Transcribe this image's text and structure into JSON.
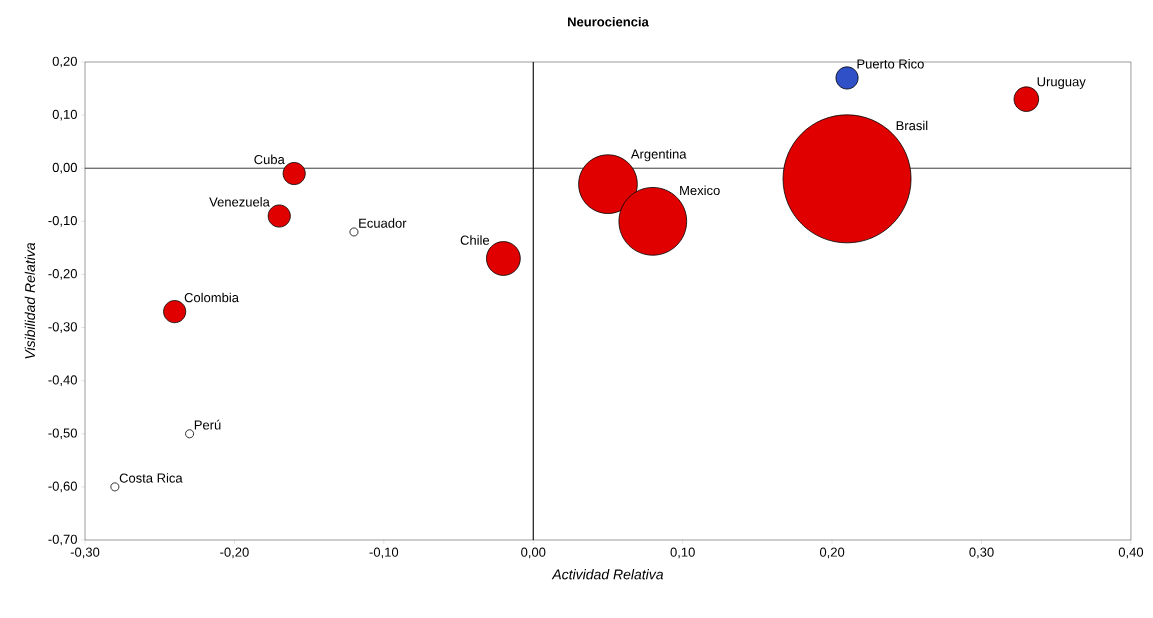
{
  "chart_data": {
    "type": "bubble",
    "title": "Neurociencia",
    "xlabel": "Actividad Relativa",
    "ylabel": "Visibilidad Relativa",
    "x": [
      0.21,
      0.33,
      0.21,
      0.05,
      0.08,
      -0.02,
      -0.12,
      -0.16,
      -0.17,
      -0.24,
      -0.23,
      -0.28
    ],
    "values": [
      0.17,
      0.13,
      -0.02,
      -0.03,
      -0.1,
      -0.17,
      -0.12,
      -0.01,
      -0.09,
      -0.27,
      -0.5,
      -0.6
    ],
    "sizes": [
      0.03,
      0.037,
      1,
      0.21,
      0.28,
      0.07,
      0.004,
      0.03,
      0.03,
      0.03,
      0.004,
      0.004
    ],
    "colors": [
      "#3050c8",
      "#e00000",
      "#e00000",
      "#e00000",
      "#e00000",
      "#e00000",
      "#ffffff",
      "#e00000",
      "#e00000",
      "#e00000",
      "#ffffff",
      "#ffffff"
    ],
    "xlim": [
      -0.3,
      0.4
    ],
    "ylim": [
      -0.7,
      0.2
    ],
    "xticks": [
      {
        "value": -0.3,
        "label": "-0,30"
      },
      {
        "value": -0.2,
        "label": "-0,20"
      },
      {
        "value": -0.1,
        "label": "-0,10"
      },
      {
        "value": 0,
        "label": "0,00"
      },
      {
        "value": 0.1,
        "label": "0,10"
      },
      {
        "value": 0.2,
        "label": "0,20"
      },
      {
        "value": 0.3,
        "label": "0,30"
      },
      {
        "value": 0.4,
        "label": "0,40"
      }
    ],
    "yticks": [
      {
        "value": -0.7,
        "label": "-0,70"
      },
      {
        "value": -0.6,
        "label": "-0,60"
      },
      {
        "value": -0.5,
        "label": "-0,50"
      },
      {
        "value": -0.4,
        "label": "-0,40"
      },
      {
        "value": -0.3,
        "label": "-0,30"
      },
      {
        "value": -0.2,
        "label": "-0,20"
      },
      {
        "value": -0.1,
        "label": "-0,10"
      },
      {
        "value": 0,
        "label": "0,00"
      },
      {
        "value": 0.1,
        "label": "0,10"
      },
      {
        "value": 0.2,
        "label": "0,20"
      }
    ],
    "ref_lines": [
      {
        "axis": "x",
        "value": 0
      },
      {
        "axis": "y",
        "value": 0
      }
    ],
    "annotations": [
      {
        "text": "Puerto Rico",
        "x": 0.21,
        "y": 0.17
      },
      {
        "text": "Uruguay",
        "x": 0.33,
        "y": 0.13
      },
      "Brasil",
      {
        "text": "Argentina",
        "x": 0.05,
        "y": -0.03
      },
      {
        "text": "Mexico",
        "x": 0.08,
        "y": -0.1
      },
      {
        "text": "Chile",
        "x": -0.02,
        "y": -0.17
      },
      {
        "text": "Ecuador",
        "x": -0.12,
        "y": -0.12
      },
      {
        "text": "Cuba",
        "x": -0.16,
        "y": -0.01
      },
      {
        "text": "Venezuela",
        "x": -0.17,
        "y": -0.09
      },
      {
        "text": "Colombia",
        "x": -0.24,
        "y": -0.27
      },
      {
        "text": "Perú",
        "x": -0.23,
        "y": -0.5
      },
      {
        "text": "Costa Rica",
        "x": -0.28,
        "y": -0.6
      }
    ]
  }
}
